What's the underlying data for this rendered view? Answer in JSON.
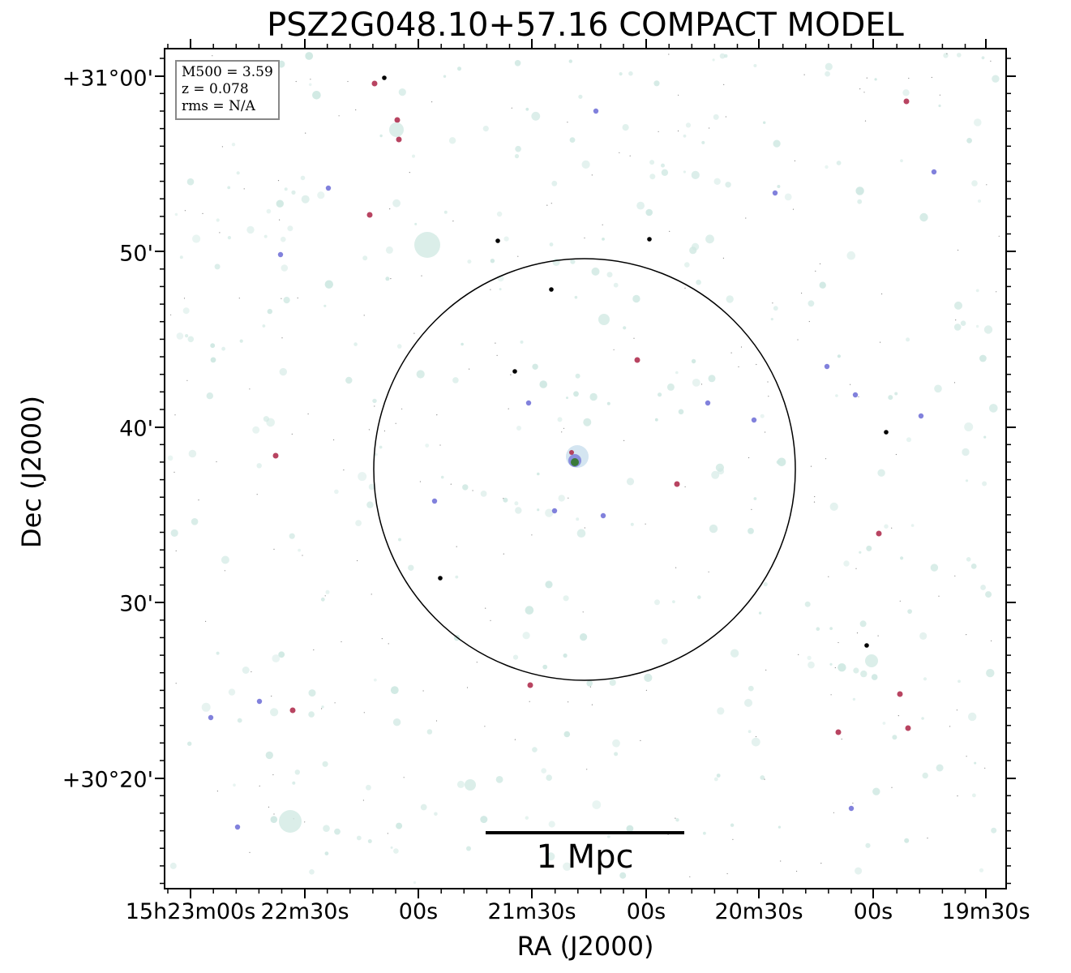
{
  "figure": {
    "title": "PSZ2G048.10+57.16 COMPACT MODEL",
    "xlabel": "RA (J2000)",
    "ylabel": "Dec (J2000)",
    "x_ticks": [
      "15h23m00s",
      "22m30s",
      "00s",
      "21m30s",
      "00s",
      "20m30s",
      "00s",
      "19m30s"
    ],
    "y_ticks": [
      "+31°00'",
      "50'",
      "40'",
      "30'",
      "+30°20'"
    ],
    "info": {
      "mass": "M500 = 3.59",
      "redshift": "z = 0.078",
      "rms": "rms = N/A"
    },
    "scale_bar": "1 Mpc",
    "colors": {
      "circle": "#000000",
      "faint_source": "#cfe8e2",
      "blue_source": "#6b6bd6",
      "red_source": "#b03050",
      "core": "#3a7a3a"
    }
  }
}
